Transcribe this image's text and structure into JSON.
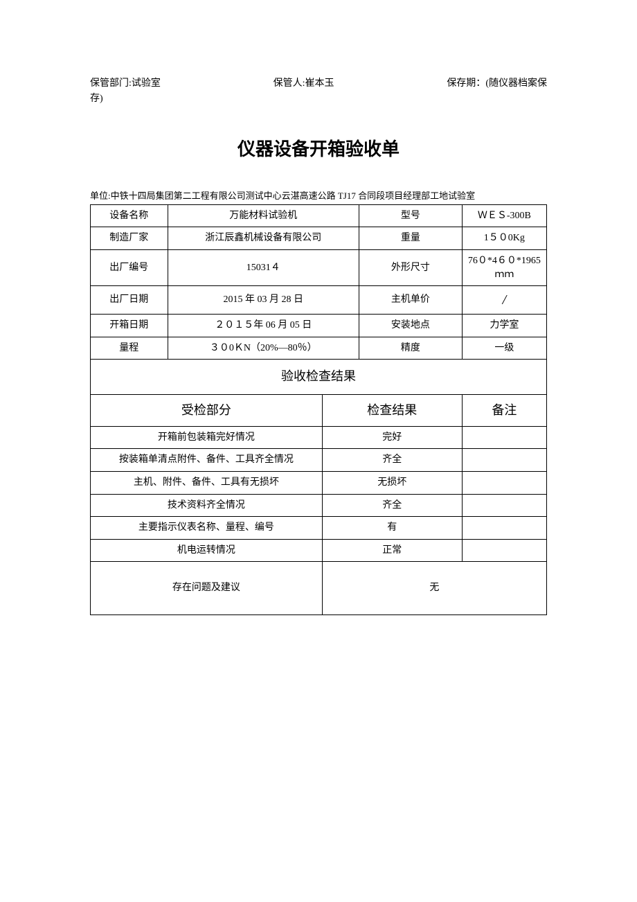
{
  "header": {
    "dept_label": "保管部门:",
    "dept_value": "试验室",
    "keeper_label": "保管人:",
    "keeper_value": "崔本玉",
    "period_label": "保存期：",
    "period_value": "(随仪器档案保存)"
  },
  "title": "仪器设备开箱验收单",
  "unit_line": "单位:中铁十四局集团第二工程有限公司测试中心云湛高速公路 TJ17 合同段项目经理部工地试验室",
  "info": {
    "device_name_label": "设备名称",
    "device_name_value": "万能材料试验机",
    "model_label": "型号",
    "model_value": "ＷＥＳ-300B",
    "manufacturer_label": "制造厂家",
    "manufacturer_value": "浙江辰鑫机械设备有限公司",
    "weight_label": "重量",
    "weight_value": "1５０0Kg",
    "factory_no_label": "出厂编号",
    "factory_no_value": "15031４",
    "size_label": "外形尺寸",
    "size_value": "76０*4６０*1965ｍｍ",
    "factory_date_label": "出厂日期",
    "factory_date_value": "2015 年 03 月 28 日",
    "unit_price_label": "主机单价",
    "unit_price_value": "/",
    "open_date_label": "开箱日期",
    "open_date_value": "２０１５年 06 月 05 日",
    "install_loc_label": "安装地点",
    "install_loc_value": "力学室",
    "range_label": "量程",
    "range_value": "３０0ＫN（20%—80％）",
    "precision_label": "精度",
    "precision_value": "一级"
  },
  "inspection": {
    "section_title": "验收检查结果",
    "col_part": "受检部分",
    "col_result": "检查结果",
    "col_remark": "备注",
    "rows": [
      {
        "part": "开箱前包装箱完好情况",
        "result": "完好",
        "remark": ""
      },
      {
        "part": "按装箱单清点附件、备件、工具齐全情况",
        "result": "齐全",
        "remark": ""
      },
      {
        "part": "主机、附件、备件、工具有无损坏",
        "result": "无损坏",
        "remark": ""
      },
      {
        "part": "技术资料齐全情况",
        "result": "齐全",
        "remark": ""
      },
      {
        "part": "主要指示仪表名称、量程、编号",
        "result": "有",
        "remark": ""
      },
      {
        "part": "机电运转情况",
        "result": "正常",
        "remark": ""
      }
    ],
    "issues_label": "存在问题及建议",
    "issues_value": "无"
  },
  "styling": {
    "background_color": "#ffffff",
    "text_color": "#000000",
    "border_color": "#000000",
    "title_fontsize": 26,
    "body_fontsize": 14,
    "section_header_fontsize": 18,
    "unit_line_fontsize": 13
  }
}
